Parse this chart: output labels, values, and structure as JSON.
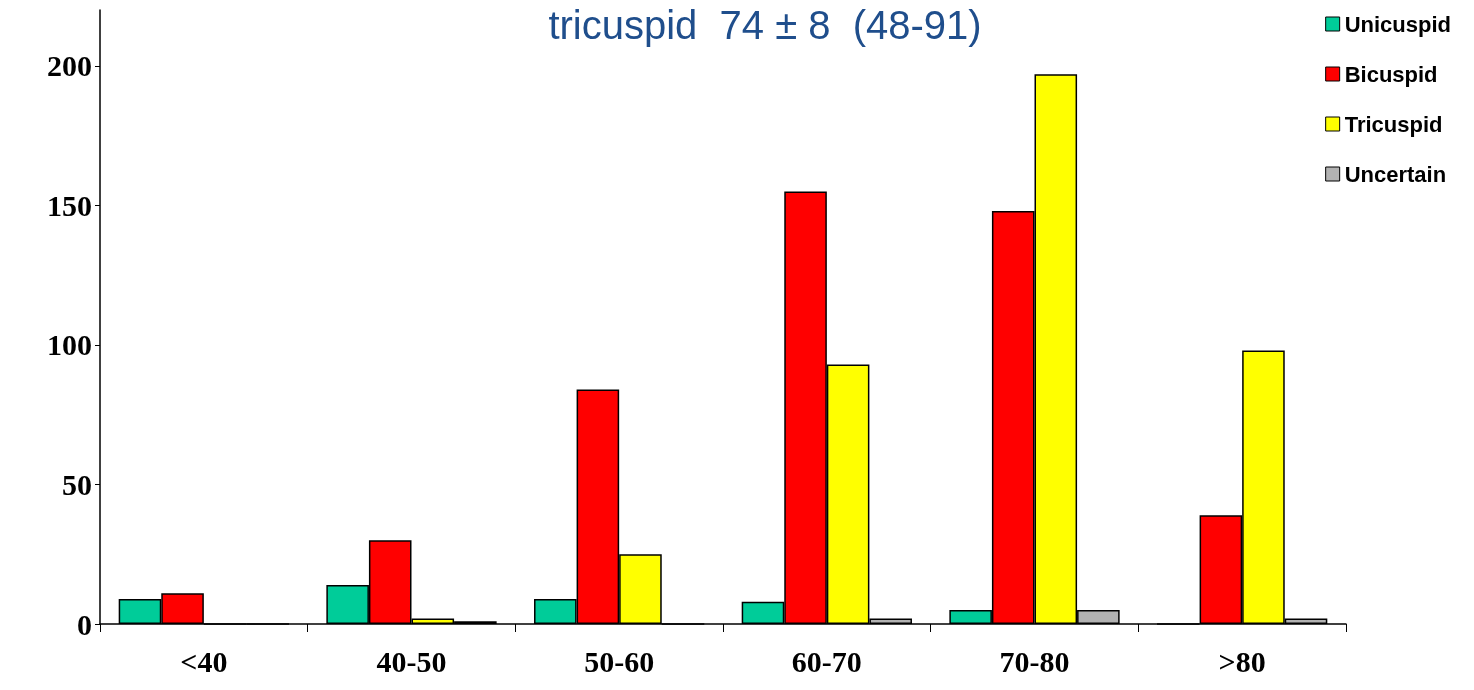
{
  "chart_data": {
    "type": "bar",
    "title": "tricuspid  74 ± 8  (48-91)",
    "categories": [
      "<40",
      "40-50",
      "50-60",
      "60-70",
      "70-80",
      ">80"
    ],
    "series": [
      {
        "name": "Unicuspid",
        "color": "#00cc99",
        "values": [
          9,
          14,
          9,
          8,
          5,
          0
        ]
      },
      {
        "name": "Bicuspid",
        "color": "#ff0000",
        "values": [
          11,
          30,
          84,
          155,
          148,
          39
        ]
      },
      {
        "name": "Tricuspid",
        "color": "#ffff00",
        "values": [
          0,
          2,
          25,
          93,
          197,
          98
        ]
      },
      {
        "name": "Uncertain",
        "color": "#b2b2b2",
        "values": [
          0,
          1,
          0,
          2,
          5,
          2
        ]
      }
    ],
    "ylim": [
      0,
      220
    ],
    "yticks": [
      0,
      50,
      100,
      150,
      200
    ],
    "grid": false,
    "legend": "top right"
  }
}
